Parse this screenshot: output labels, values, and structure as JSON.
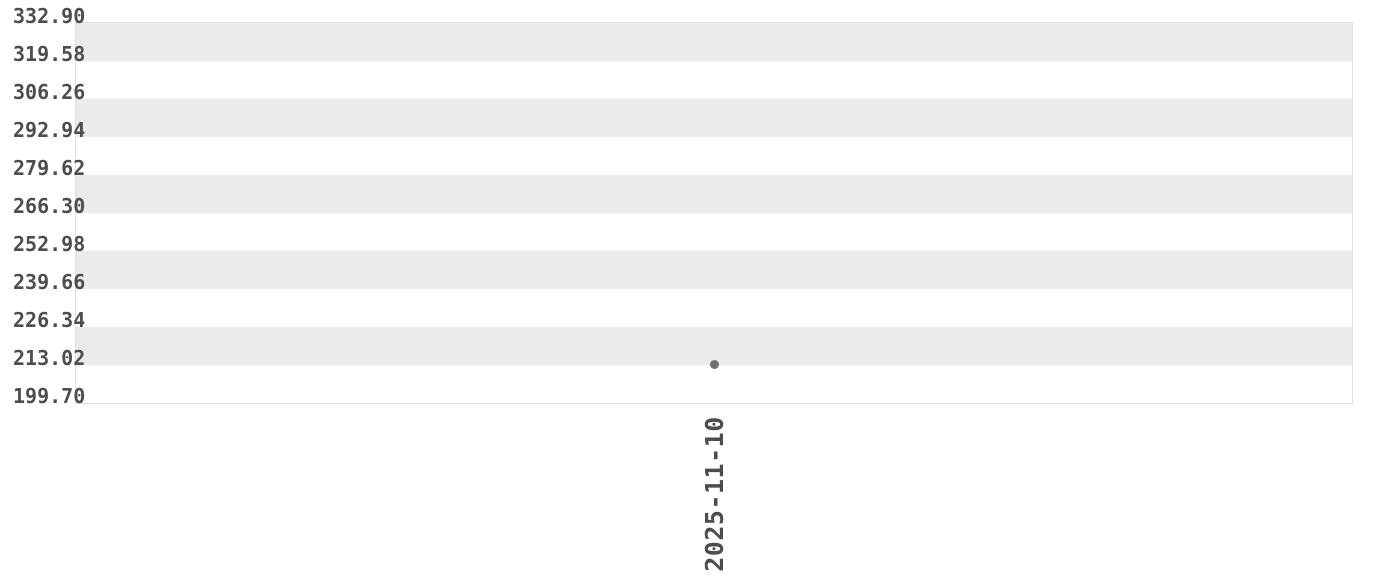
{
  "chart_data": {
    "type": "scatter",
    "title": "",
    "xlabel": "",
    "ylabel": "",
    "x": [
      "2025-11-10"
    ],
    "values": [
      213.0
    ],
    "xtick_labels": [
      "2025-11-10"
    ],
    "ytick_labels": [
      "332.90",
      "319.58",
      "306.26",
      "292.94",
      "279.62",
      "266.30",
      "252.98",
      "239.66",
      "226.34",
      "213.02",
      "199.70"
    ],
    "yticks": [
      332.9,
      319.58,
      306.26,
      292.94,
      279.62,
      266.3,
      252.98,
      239.66,
      226.34,
      213.02,
      199.7
    ],
    "ylim": [
      199.7,
      332.9
    ],
    "grid": "horizontal-zebra-bands",
    "legend_position": "none"
  },
  "colors": {
    "background": "#ffffff",
    "band_stripe": "#ebebeb",
    "plot_border": "#dfdfdf",
    "tick_label_text": "#4d4d4d",
    "data_point": "#717171"
  }
}
